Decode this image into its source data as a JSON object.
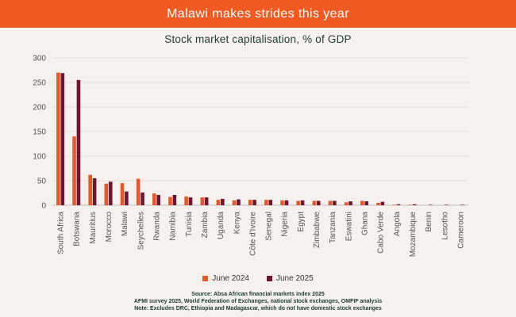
{
  "banner": {
    "title": "Malawi makes strides this year"
  },
  "chart_data": {
    "type": "bar",
    "title": "Stock market capitalisation, % of GDP",
    "xlabel": "",
    "ylabel": "",
    "ylim": [
      0,
      300
    ],
    "yticks": [
      0,
      50,
      100,
      150,
      200,
      250,
      300
    ],
    "grid": true,
    "legend_position": "bottom",
    "categories": [
      "South Africa",
      "Botswana",
      "Mauritius",
      "Morocco",
      "Malawi",
      "Seychelles",
      "Rwanda",
      "Namibia",
      "Tunisia",
      "Zambia",
      "Uganda",
      "Kenya",
      "Côte d'Ivoire",
      "Senegal",
      "Nigeria",
      "Egypt",
      "Zimbabwe",
      "Tanzania",
      "Eswatini",
      "Ghana",
      "Cabo Verde",
      "Angola",
      "Mozambique",
      "Benin",
      "Lesotho",
      "Cameroon"
    ],
    "series": [
      {
        "name": "June 2024",
        "color": "#e5582b",
        "values": [
          270,
          140,
          62,
          44,
          45,
          54,
          24,
          17,
          18,
          16,
          11,
          10,
          11,
          11,
          10,
          9,
          9,
          9,
          6,
          9,
          5,
          1,
          1,
          0,
          0,
          0
        ]
      },
      {
        "name": "June 2025",
        "color": "#6e1631",
        "values": [
          269,
          255,
          55,
          48,
          28,
          26,
          21,
          21,
          16,
          16,
          13,
          12,
          11,
          11,
          10,
          10,
          9,
          9,
          8,
          8,
          7,
          2,
          2,
          1,
          1,
          1
        ]
      }
    ]
  },
  "footer": {
    "source": "Source: Absa African financial markets index 2025",
    "line2": "AFMI survey 2025, World Federation of Exchanges, national stock exchanges, OMFIF analysis",
    "note": "Note: Excludes DRC, Ethiopia and Madagascar, which do not have domestic stock exchanges"
  }
}
